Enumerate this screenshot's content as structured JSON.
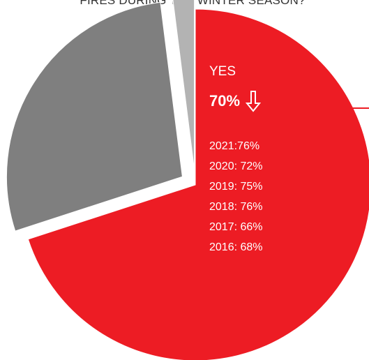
{
  "chart_data": {
    "type": "pie",
    "title": "FIRES DURING THE WINTER SEASON?",
    "slices": [
      {
        "label": "YES",
        "value": 70,
        "color": "#ed1c24",
        "exploded": false
      },
      {
        "label": "",
        "value": 28,
        "color": "#7f7f7f",
        "exploded": true
      },
      {
        "label": "",
        "value": 2,
        "color": "#b3b3b3",
        "exploded": true
      }
    ],
    "annotations": {
      "yes_label": "YES",
      "yes_percent": "70%",
      "trend_icon": "down-arrow-icon",
      "history": [
        "2021:76%",
        "2020: 72%",
        "2019: 75%",
        "2018: 76%",
        "2017: 66%",
        "2016: 68%"
      ]
    },
    "colors": {
      "accent": "#ed1c24",
      "leader_line": "#ed1c24"
    }
  }
}
